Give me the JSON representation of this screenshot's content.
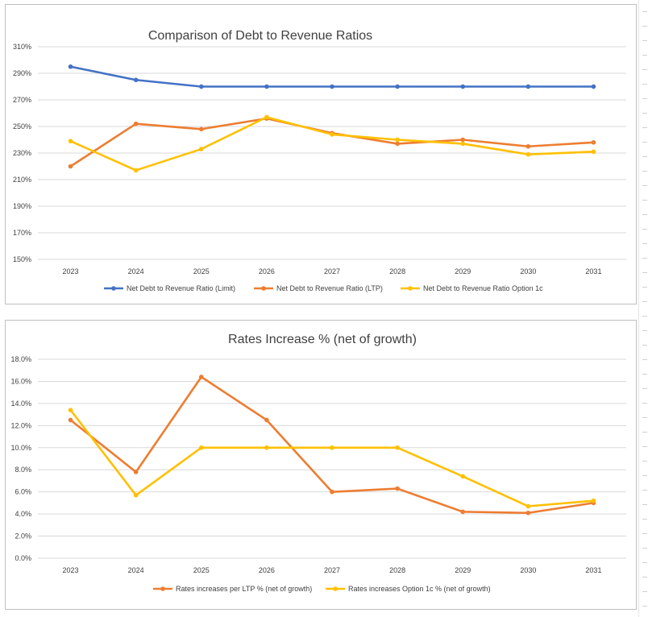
{
  "chart_data": [
    {
      "type": "line",
      "title": "Comparison of Debt to Revenue Ratios",
      "xlabel": "",
      "ylabel": "",
      "x": [
        "2023",
        "2024",
        "2025",
        "2026",
        "2027",
        "2028",
        "2029",
        "2030",
        "2031"
      ],
      "ylim": [
        150,
        310
      ],
      "y_ticks": [
        150,
        170,
        190,
        210,
        230,
        250,
        270,
        290,
        310
      ],
      "y_tick_labels": [
        "150%",
        "170%",
        "190%",
        "210%",
        "230%",
        "250%",
        "270%",
        "290%",
        "310%"
      ],
      "grid": true,
      "legend": "bottom",
      "series": [
        {
          "name": "Net Debt to Revenue Ratio (Limit)",
          "color": "#4472c4",
          "values": [
            295,
            285,
            280,
            280,
            280,
            280,
            280,
            280,
            280
          ]
        },
        {
          "name": "Net Debt to Revenue Ratio (LTP)",
          "color": "#ed7d31",
          "values": [
            220,
            252,
            248,
            256,
            245,
            237,
            240,
            235,
            238
          ]
        },
        {
          "name": "Net Debt to Revenue Ratio Option 1c",
          "color": "#ffc000",
          "values": [
            239,
            217,
            233,
            257,
            244,
            240,
            237,
            229,
            231
          ]
        }
      ]
    },
    {
      "type": "line",
      "title": "Rates Increase % (net of growth)",
      "xlabel": "",
      "ylabel": "",
      "x": [
        "2023",
        "2024",
        "2025",
        "2026",
        "2027",
        "2028",
        "2029",
        "2030",
        "2031"
      ],
      "ylim": [
        0,
        18
      ],
      "y_ticks": [
        0,
        2,
        4,
        6,
        8,
        10,
        12,
        14,
        16,
        18
      ],
      "y_tick_labels": [
        "0.0%",
        "2.0%",
        "4.0%",
        "6.0%",
        "8.0%",
        "10.0%",
        "12.0%",
        "14.0%",
        "16.0%",
        "18.0%"
      ],
      "grid": true,
      "legend": "bottom",
      "series": [
        {
          "name": "Rates increases per LTP % (net of growth)",
          "color": "#ed7d31",
          "values": [
            12.5,
            7.8,
            16.4,
            12.5,
            6.0,
            6.3,
            4.2,
            4.1,
            5.0
          ]
        },
        {
          "name": "Rates increases Option 1c % (net of growth)",
          "color": "#ffc000",
          "values": [
            13.4,
            5.7,
            10.0,
            10.0,
            10.0,
            10.0,
            7.4,
            4.7,
            5.2
          ]
        }
      ]
    }
  ]
}
